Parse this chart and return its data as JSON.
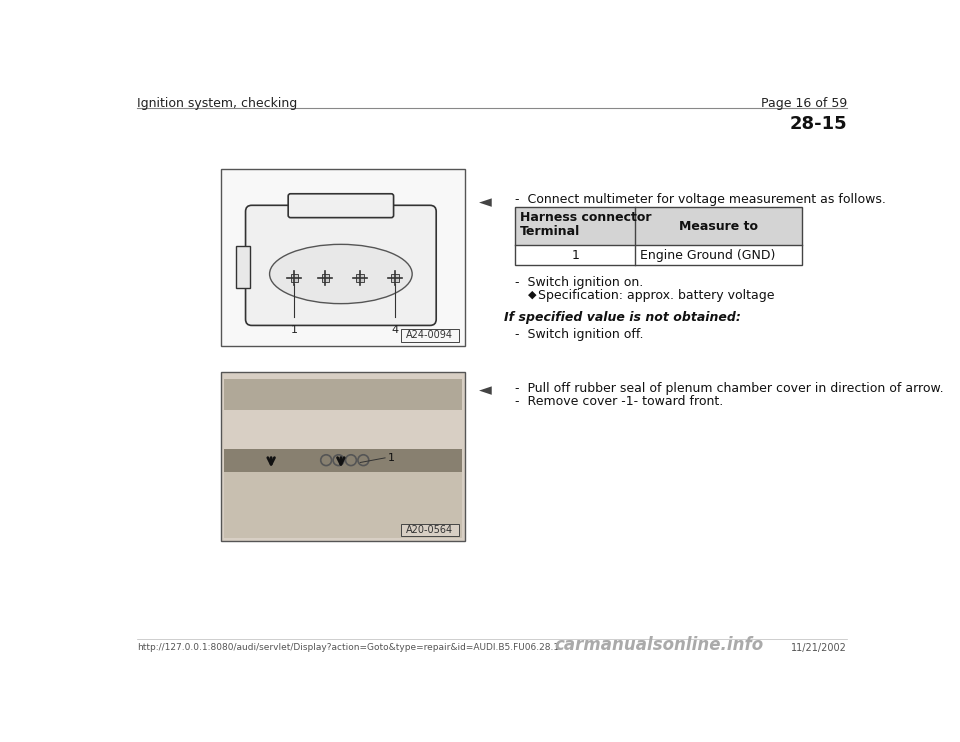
{
  "bg_color": "#ffffff",
  "header_left": "Ignition system, checking",
  "header_right": "Page 16 of 59",
  "section_number": "28-15",
  "arrow_symbol": "◄",
  "bullet_symbol": "◆",
  "instruction1": "-  Connect multimeter for voltage measurement as follows.",
  "table_header_col1a": "Harness connector",
  "table_header_col1b": "Terminal",
  "table_header_col2": "Measure to",
  "table_data_col1": "1",
  "table_data_col2": "Engine Ground (GND)",
  "table_header_bg": "#d4d4d4",
  "table_border_color": "#444444",
  "instruction2": "-  Switch ignition on.",
  "specification": "Specification: approx. battery voltage",
  "if_specified": "If specified value is not obtained:",
  "switch_off": "-  Switch ignition off.",
  "pull_off": "-  Pull off rubber seal of plenum chamber cover in direction of arrow.",
  "remove_cover": "-  Remove cover -1- toward front.",
  "footer_url": "http://127.0.0.1:8080/audi/servlet/Display?action=Goto&type=repair&id=AUDI.B5.FU06.28.1",
  "footer_date": "11/21/2002",
  "footer_watermark": "carmanualsonline.info",
  "font_size_small": 8,
  "font_size_body": 9,
  "font_size_section": 13,
  "img1_label": "A24-0094",
  "img2_label": "A20-0564"
}
